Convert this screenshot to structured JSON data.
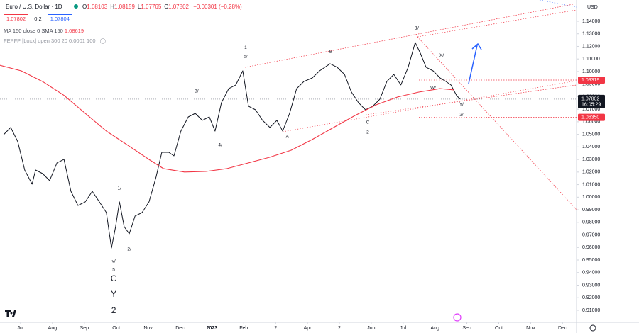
{
  "header": {
    "title": "Euro / U.S. Dollar · 1D",
    "ohlc": [
      {
        "label": "O",
        "value": 1.08103
      },
      {
        "label": "H",
        "value": 1.08159
      },
      {
        "label": "L",
        "value": 1.07765
      },
      {
        "label": "C",
        "value": 1.07802
      }
    ],
    "change": -0.00301,
    "change_label": "−0.00301 (−0.28%)",
    "bid": 1.07802,
    "spread": 0.2,
    "ask": 1.07804
  },
  "indicators": [
    {
      "text": "MA 150 close 0 SMA 150",
      "value": 1.08619
    },
    {
      "text": "FEPFP [Loxx] open 300 20 0.0001 100"
    }
  ],
  "chart_data": {
    "type": "line",
    "currency": "USD",
    "xlim": [
      -0.646,
      17.44
    ],
    "xticks": [
      {
        "value": 0,
        "label": "Jul"
      },
      {
        "value": 1,
        "label": "Aug"
      },
      {
        "value": 2,
        "label": "Sep"
      },
      {
        "value": 3,
        "label": "Oct"
      },
      {
        "value": 4,
        "label": "Nov"
      },
      {
        "value": 5,
        "label": "Dec"
      },
      {
        "value": 6,
        "label": "2023"
      },
      {
        "value": 7,
        "label": "Feb"
      },
      {
        "value": 8,
        "label": "2"
      },
      {
        "value": 9,
        "label": "Apr"
      },
      {
        "value": 10,
        "label": "2"
      },
      {
        "value": 11,
        "label": "Jun"
      },
      {
        "value": 12,
        "label": "Jul"
      },
      {
        "value": 13,
        "label": "Aug"
      },
      {
        "value": 14,
        "label": "Sep"
      },
      {
        "value": 15,
        "label": "Oct"
      },
      {
        "value": 16,
        "label": "Nov"
      },
      {
        "value": 17,
        "label": "Dec"
      }
    ],
    "ylim": [
      0.9004,
      1.1569
    ],
    "yticks": [
      {
        "value": 0.91,
        "label": "0.91000"
      },
      {
        "value": 0.92,
        "label": "0.92000"
      },
      {
        "value": 0.93,
        "label": "0.93000"
      },
      {
        "value": 0.94,
        "label": "0.94000"
      },
      {
        "value": 0.95,
        "label": "0.95000"
      },
      {
        "value": 0.96,
        "label": "0.96000"
      },
      {
        "value": 0.97,
        "label": "0.97000"
      },
      {
        "value": 0.98,
        "label": "0.98000"
      },
      {
        "value": 0.99,
        "label": "0.99000"
      },
      {
        "value": 1.0,
        "label": "1.00000"
      },
      {
        "value": 1.01,
        "label": "1.01000"
      },
      {
        "value": 1.02,
        "label": "1.02000"
      },
      {
        "value": 1.03,
        "label": "1.03000"
      },
      {
        "value": 1.04,
        "label": "1.04000"
      },
      {
        "value": 1.05,
        "label": "1.05000"
      },
      {
        "value": 1.06,
        "label": "1.06000"
      },
      {
        "value": 1.07,
        "label": "1.07000"
      },
      {
        "value": 1.08,
        "label": "1.08000"
      },
      {
        "value": 1.09,
        "label": "1.09000"
      },
      {
        "value": 1.1,
        "label": "1.10000"
      },
      {
        "value": 1.11,
        "label": "1.11000"
      },
      {
        "value": 1.12,
        "label": "1.12000"
      },
      {
        "value": 1.13,
        "label": "1.13000"
      },
      {
        "value": 1.14,
        "label": "1.14000"
      }
    ],
    "grid": false,
    "series": [
      {
        "color": "#131722",
        "x": [
          -0.53,
          -0.31,
          -0.09,
          0.13,
          0.36,
          0.47,
          0.69,
          0.91,
          1.14,
          1.36,
          1.58,
          1.8,
          2.03,
          2.25,
          2.47,
          2.69,
          2.85,
          2.98,
          3.1,
          3.25,
          3.41,
          3.59,
          3.81,
          4.03,
          4.25,
          4.43,
          4.65,
          4.81,
          5.03,
          5.26,
          5.48,
          5.7,
          5.92,
          6.1,
          6.3,
          6.53,
          6.75,
          6.97,
          7.15,
          7.37,
          7.59,
          7.82,
          8.04,
          8.22,
          8.44,
          8.66,
          8.89,
          9.15,
          9.38,
          9.71,
          9.93,
          10.16,
          10.38,
          10.6,
          10.82,
          11.05,
          11.27,
          11.49,
          11.71,
          11.93,
          12.16,
          12.38,
          12.54,
          12.72,
          12.94,
          13.16,
          13.34,
          13.5,
          13.68,
          13.79
        ],
        "values": [
          1.0498,
          1.0555,
          1.0442,
          1.0216,
          1.0104,
          1.0216,
          1.0188,
          1.0132,
          1.0273,
          1.0301,
          1.0047,
          0.9934,
          0.9963,
          1.0047,
          0.9963,
          0.9878,
          0.9596,
          0.9765,
          0.9963,
          0.9765,
          0.9709,
          0.985,
          0.9878,
          0.9963,
          1.016,
          1.0357,
          1.0357,
          1.0329,
          1.0526,
          1.0639,
          1.0667,
          1.0611,
          1.0639,
          1.0526,
          1.0752,
          1.0864,
          1.0893,
          1.1005,
          1.0724,
          1.0695,
          1.0611,
          1.0555,
          1.0611,
          1.0526,
          1.0667,
          1.0864,
          1.0921,
          1.0949,
          1.1005,
          1.1062,
          1.1034,
          1.0977,
          1.0836,
          1.0752,
          1.0695,
          1.0724,
          1.078,
          1.0921,
          1.0977,
          1.0893,
          1.1034,
          1.1231,
          1.1146,
          1.1034,
          1.1005,
          1.0949,
          1.0921,
          1.0893,
          1.0808,
          1.07802
        ]
      },
      {
        "color": "#f23645",
        "x": [
          -0.65,
          0.02,
          0.69,
          1.36,
          2.03,
          2.69,
          3.36,
          4.03,
          4.48,
          5.14,
          5.81,
          6.48,
          7.15,
          7.82,
          8.49,
          9.15,
          9.82,
          10.49,
          11.16,
          11.83,
          12.49,
          13.16,
          13.61
        ],
        "values": [
          1.105,
          1.1005,
          1.092,
          1.081,
          1.0667,
          1.0526,
          1.0414,
          1.03,
          1.0228,
          1.02,
          1.0205,
          1.0228,
          1.0273,
          1.0318,
          1.0374,
          1.0459,
          1.0555,
          1.065,
          1.0735,
          1.0797,
          1.0836,
          1.0864,
          1.0853
        ]
      }
    ],
    "last_price": 1.07802,
    "countdown": "16:05:29",
    "levels": [
      {
        "value": 1.09319,
        "label": "1.09319",
        "color": "#f23645"
      },
      {
        "value": 1.0635,
        "label": "1.06350",
        "color": "#f23645"
      }
    ],
    "annotations": [
      {
        "text": "1",
        "x": 7.06,
        "y": 1.1191,
        "size": "small"
      },
      {
        "text": "5/",
        "x": 7.06,
        "y": 1.1118,
        "size": "small"
      },
      {
        "text": "3/",
        "x": 5.52,
        "y": 1.0842,
        "size": "small"
      },
      {
        "text": "4/",
        "x": 6.26,
        "y": 1.0414,
        "size": "small"
      },
      {
        "text": "A",
        "x": 8.37,
        "y": 1.0481,
        "size": "small"
      },
      {
        "text": "B",
        "x": 9.73,
        "y": 1.1158,
        "size": "small"
      },
      {
        "text": "C",
        "x": 10.89,
        "y": 1.0594,
        "size": "small"
      },
      {
        "text": "2",
        "x": 10.89,
        "y": 1.0515,
        "size": "small"
      },
      {
        "text": "1/",
        "x": 12.43,
        "y": 1.1344,
        "size": "small"
      },
      {
        "text": "X/",
        "x": 13.21,
        "y": 1.1129,
        "size": "small"
      },
      {
        "text": "W/",
        "x": 12.94,
        "y": 1.087,
        "size": "small"
      },
      {
        "text": "Y/",
        "x": 13.83,
        "y": 1.074,
        "size": "small"
      },
      {
        "text": "2/",
        "x": 13.83,
        "y": 1.0656,
        "size": "small"
      },
      {
        "text": "1/",
        "x": 3.1,
        "y": 1.007,
        "size": "small"
      },
      {
        "text": "2/",
        "x": 3.41,
        "y": 0.9585,
        "size": "small"
      },
      {
        "text": "v/",
        "x": 2.92,
        "y": 0.9489,
        "size": "small"
      },
      {
        "text": "5",
        "x": 2.92,
        "y": 0.9421,
        "size": "small"
      },
      {
        "text": "C",
        "x": 2.92,
        "y": 0.9348,
        "size": "large"
      },
      {
        "text": "Y",
        "x": 2.92,
        "y": 0.9224,
        "size": "large"
      },
      {
        "text": "2",
        "x": 2.92,
        "y": 0.9094,
        "size": "large"
      }
    ]
  }
}
